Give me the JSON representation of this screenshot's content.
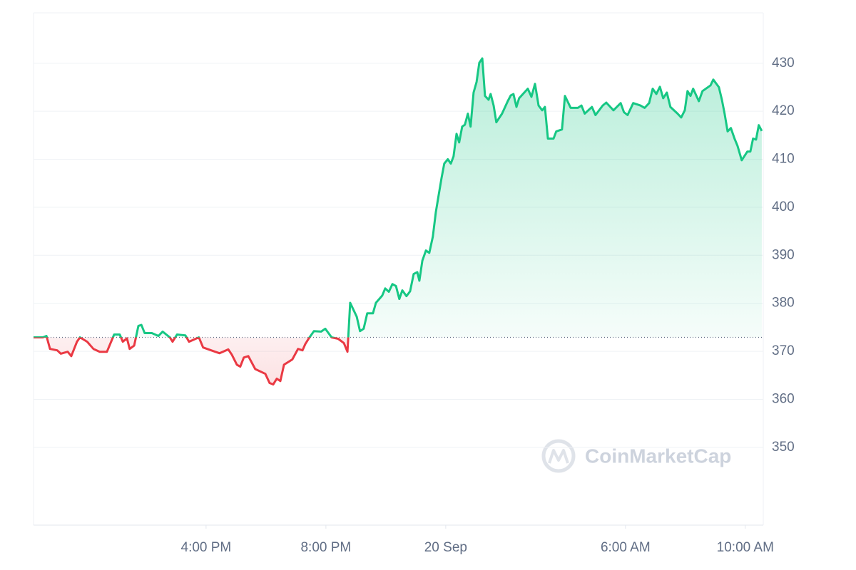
{
  "chart_data": {
    "type": "line",
    "x": [
      10.24,
      10.55,
      10.67,
      10.79,
      11.03,
      11.15,
      11.38,
      11.5,
      11.69,
      11.79,
      12.03,
      12.24,
      12.45,
      12.69,
      12.93,
      13.12,
      13.22,
      13.36,
      13.45,
      13.6,
      13.74,
      13.84,
      13.95,
      14.19,
      14.41,
      14.55,
      14.79,
      14.88,
      15.03,
      15.31,
      15.43,
      15.76,
      15.9,
      16.17,
      16.45,
      16.74,
      16.86,
      17.03,
      17.14,
      17.26,
      17.41,
      17.64,
      17.98,
      18.12,
      18.24,
      18.36,
      18.48,
      18.6,
      18.88,
      19.07,
      19.22,
      19.31,
      19.43,
      19.6,
      19.84,
      19.98,
      20.19,
      20.41,
      20.6,
      20.72,
      20.81,
      21.03,
      21.14,
      21.26,
      21.38,
      21.57,
      21.67,
      21.88,
      21.98,
      22.1,
      22.22,
      22.34,
      22.45,
      22.55,
      22.69,
      22.81,
      22.93,
      23.05,
      23.12,
      23.22,
      23.34,
      23.45,
      23.57,
      23.67,
      23.76,
      23.86,
      23.95,
      24.07,
      24.17,
      24.26,
      24.36,
      24.45,
      24.55,
      24.64,
      24.74,
      24.83,
      24.93,
      25.03,
      25.12,
      25.22,
      25.31,
      25.43,
      25.5,
      25.6,
      25.69,
      25.88,
      26.07,
      26.17,
      26.26,
      26.36,
      26.45,
      26.74,
      26.86,
      26.98,
      27.1,
      27.22,
      27.31,
      27.41,
      27.6,
      27.69,
      27.88,
      27.98,
      28.17,
      28.41,
      28.53,
      28.64,
      28.88,
      29.0,
      29.24,
      29.36,
      29.6,
      29.84,
      29.95,
      30.07,
      30.26,
      30.5,
      30.64,
      30.79,
      30.91,
      31.03,
      31.15,
      31.26,
      31.38,
      31.5,
      31.74,
      31.86,
      31.98,
      32.07,
      32.17,
      32.26,
      32.45,
      32.57,
      32.84,
      32.93,
      33.12,
      33.22,
      33.31,
      33.41,
      33.52,
      33.64,
      33.74,
      33.88,
      34.07,
      34.17,
      34.26,
      34.36,
      34.45,
      34.55
    ],
    "values": [
      372.9,
      372.9,
      373.2,
      370.5,
      370.2,
      369.5,
      369.9,
      369.0,
      372.0,
      372.9,
      372.0,
      370.5,
      369.9,
      369.9,
      373.5,
      373.5,
      372.0,
      372.7,
      370.5,
      371.2,
      375.3,
      375.5,
      373.8,
      373.8,
      373.2,
      374.1,
      372.9,
      372.0,
      373.5,
      373.3,
      372.0,
      372.9,
      370.8,
      370.2,
      369.6,
      370.4,
      369.3,
      367.2,
      366.8,
      368.7,
      369.0,
      366.3,
      365.3,
      363.4,
      363.1,
      364.3,
      363.8,
      367.2,
      368.3,
      370.5,
      370.2,
      371.5,
      372.7,
      374.2,
      374.1,
      374.7,
      372.9,
      372.6,
      371.7,
      369.9,
      380.1,
      377.2,
      374.2,
      374.7,
      377.9,
      377.9,
      380.1,
      381.6,
      383.1,
      382.4,
      384.0,
      383.6,
      380.9,
      382.7,
      381.5,
      382.5,
      386.1,
      386.5,
      384.7,
      388.9,
      391.0,
      390.5,
      393.9,
      399.0,
      402.4,
      406.1,
      409.1,
      410.0,
      409.1,
      410.6,
      415.3,
      413.5,
      416.8,
      417.2,
      419.5,
      416.8,
      423.9,
      426.1,
      430.1,
      431.0,
      423.2,
      422.4,
      423.6,
      421.2,
      417.7,
      419.5,
      422.1,
      423.3,
      423.6,
      420.9,
      422.7,
      424.7,
      423.0,
      425.7,
      421.2,
      420.2,
      420.9,
      414.3,
      414.3,
      415.8,
      416.2,
      423.2,
      420.7,
      420.7,
      421.2,
      419.5,
      420.9,
      419.2,
      421.2,
      421.8,
      420.2,
      421.7,
      419.8,
      419.2,
      421.7,
      421.2,
      420.7,
      421.7,
      424.7,
      423.6,
      425.1,
      422.7,
      423.9,
      420.9,
      419.5,
      418.7,
      420.2,
      424.2,
      423.2,
      424.7,
      422.1,
      424.2,
      425.4,
      426.6,
      425.0,
      422.4,
      419.5,
      415.8,
      416.5,
      414.3,
      412.8,
      409.8,
      411.6,
      411.6,
      414.3,
      414.1,
      417.1,
      415.9
    ],
    "reference_value": 372.9,
    "xlim": [
      10.24,
      34.6
    ],
    "xticks": [
      {
        "value": 16,
        "label": "4:00 PM"
      },
      {
        "value": 20,
        "label": "8:00 PM"
      },
      {
        "value": 24,
        "label": "20 Sep"
      },
      {
        "value": 30,
        "label": "6:00 AM"
      },
      {
        "value": 34,
        "label": "10:00 AM"
      }
    ],
    "ylim": [
      333.8,
      440.5
    ],
    "yticks": [
      350,
      360,
      370,
      380,
      390,
      400,
      410,
      420,
      430
    ],
    "grid": true,
    "up_color": "#16c784",
    "down_color": "#ea3943",
    "watermark": "CoinMarketCap"
  }
}
